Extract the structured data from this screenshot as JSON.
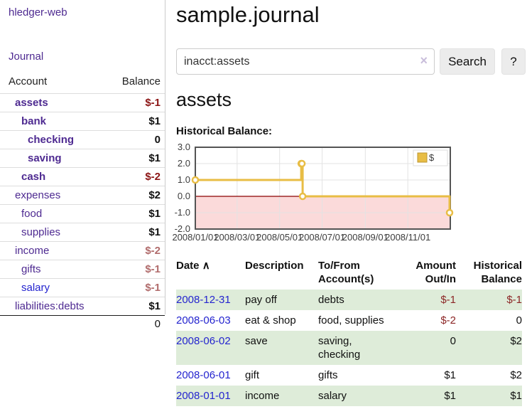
{
  "app": {
    "brand": "hledger-web",
    "nav": {
      "journal": "Journal"
    }
  },
  "sidebar": {
    "header": {
      "account": "Account",
      "balance": "Balance"
    },
    "accounts": [
      {
        "name": "assets",
        "balance": "$-1",
        "emph": "bold",
        "balance_class": "neg-strong"
      },
      {
        "name": "bank",
        "balance": "$1",
        "emph": "bold"
      },
      {
        "name": "checking",
        "balance": "0",
        "emph": "bold"
      },
      {
        "name": "saving",
        "balance": "$1",
        "emph": "bold"
      },
      {
        "name": "cash",
        "balance": "$-2",
        "emph": "bold",
        "balance_class": "neg-strong"
      },
      {
        "name": "expenses",
        "balance": "$2"
      },
      {
        "name": "food",
        "balance": "$1"
      },
      {
        "name": "supplies",
        "balance": "$1"
      },
      {
        "name": "income",
        "balance": "$-2",
        "balance_class": "neg-soft"
      },
      {
        "name": "gifts",
        "balance": "$-1",
        "balance_class": "neg-soft"
      },
      {
        "name": "salary",
        "balance": "$-1",
        "name_color": "blue",
        "balance_class": "neg-soft"
      },
      {
        "name": "liabilities:debts",
        "balance": "$1"
      }
    ],
    "total": "0"
  },
  "main": {
    "title": "sample.journal",
    "search": {
      "value": "inacct:assets",
      "clear_icon": "×",
      "button_label": "Search",
      "help_label": "?"
    },
    "account_heading": "assets",
    "chart_label": "Historical Balance:"
  },
  "chart_data": {
    "type": "line",
    "title": "Historical Balance",
    "step": true,
    "series": [
      {
        "name": "$",
        "points": [
          [
            "2008-01-01",
            1
          ],
          [
            "2008-06-01",
            2
          ],
          [
            "2008-06-02",
            2
          ],
          [
            "2008-06-03",
            0
          ],
          [
            "2008-12-31",
            -1
          ]
        ]
      }
    ],
    "x_range": [
      "2008-01-01",
      "2009-01-01"
    ],
    "x_ticks": [
      "2008/01/01",
      "2008/03/01",
      "2008/05/01",
      "2008/07/01",
      "2008/09/01",
      "2008/11/01"
    ],
    "y_ticks": [
      3.0,
      2.0,
      1.0,
      0.0,
      -1.0,
      -2.0
    ],
    "y_tick_labels": [
      "3.0",
      "2.0",
      "1.0",
      "0.0",
      "-1.0",
      "-2.0"
    ],
    "ylim": [
      -2,
      3
    ],
    "grid": true,
    "legend": {
      "label": "$",
      "position": "top-right"
    },
    "colors": {
      "line": "#e8bd45",
      "marker_fill": "#ffffff",
      "negative_region": "#fbdada",
      "zero_line": "#8b0000",
      "grid": "#e3e3e3",
      "border": "#545454"
    }
  },
  "table": {
    "headers": {
      "date": "Date",
      "sort_indicator": "∧",
      "description": "Description",
      "account_line1": "To/From",
      "account_line2": "Account(s)",
      "amount_line1": "Amount",
      "amount_line2": "Out/In",
      "balance_line1": "Historical",
      "balance_line2": "Balance"
    },
    "rows": [
      {
        "date": "2008-12-31",
        "description": "pay off",
        "accounts": "debts",
        "amount": "$-1",
        "amount_class": "neg",
        "balance": "$-1",
        "balance_class": "neg"
      },
      {
        "date": "2008-06-03",
        "description": "eat & shop",
        "accounts": "food, supplies",
        "amount": "$-2",
        "amount_class": "neg",
        "balance": "0"
      },
      {
        "date": "2008-06-02",
        "description": "save",
        "accounts": "saving, checking",
        "amount": "0",
        "balance": "$2"
      },
      {
        "date": "2008-06-01",
        "description": "gift",
        "accounts": "gifts",
        "amount": "$1",
        "balance": "$2"
      },
      {
        "date": "2008-01-01",
        "description": "income",
        "accounts": "salary",
        "amount": "$1",
        "balance": "$1"
      }
    ]
  }
}
